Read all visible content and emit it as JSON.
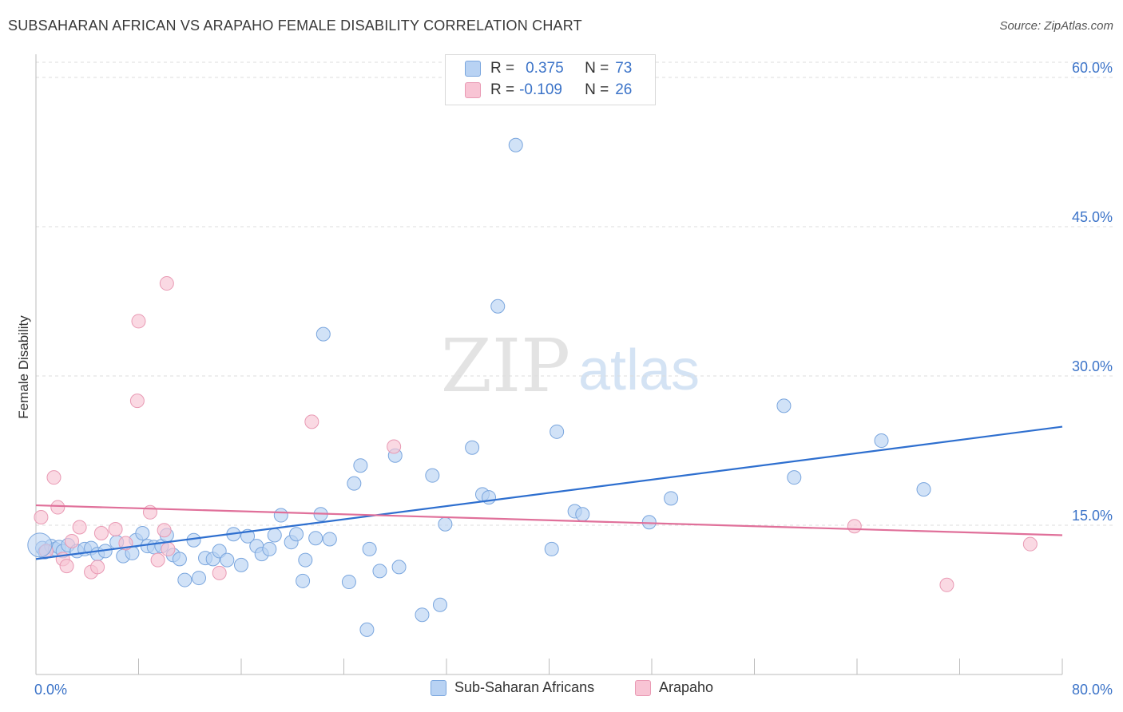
{
  "title": "SUBSAHARAN AFRICAN VS ARAPAHO FEMALE DISABILITY CORRELATION CHART",
  "source": "Source: ZipAtlas.com",
  "watermark": {
    "part1": "ZIP",
    "part2": "atlas"
  },
  "legend": {
    "rows": [
      {
        "r_label": "R =",
        "r_value": "0.375",
        "n_label": "N =",
        "n_value": "73"
      },
      {
        "r_label": "R =",
        "r_value": "-0.109",
        "n_label": "N =",
        "n_value": "26"
      }
    ]
  },
  "bottom_legend": {
    "items": [
      {
        "label": "Sub-Saharan Africans"
      },
      {
        "label": "Arapaho"
      }
    ]
  },
  "colors": {
    "blue_fill": "#b8d2f3",
    "blue_stroke": "#7aa6de",
    "blue_line": "#2e6fcf",
    "pink_fill": "#f8c4d4",
    "pink_stroke": "#e99ab4",
    "pink_line": "#e0709a",
    "tick_label": "#3b73c8"
  },
  "chart_data": {
    "type": "scatter",
    "title": "SUBSAHARAN AFRICAN VS ARAPAHO FEMALE DISABILITY CORRELATION CHART",
    "xlabel": "",
    "ylabel": "Female Disability",
    "xlim": [
      0,
      80
    ],
    "ylim": [
      0,
      60
    ],
    "x_tick_labels": [
      "0.0%",
      "80.0%"
    ],
    "y_ticks": [
      15,
      30,
      45,
      60
    ],
    "y_tick_labels": [
      "15.0%",
      "30.0%",
      "45.0%",
      "60.0%"
    ],
    "grid": true,
    "series": [
      {
        "name": "Sub-Saharan Africans",
        "r": 0.375,
        "n": 73,
        "trend": [
          [
            0,
            11.6
          ],
          [
            80,
            24.9
          ]
        ],
        "points": [
          [
            0.5,
            12.7
          ],
          [
            0.7,
            12.3
          ],
          [
            1.2,
            12.9
          ],
          [
            1.5,
            12.6
          ],
          [
            1.8,
            12.8
          ],
          [
            2.1,
            12.4
          ],
          [
            2.5,
            13.0
          ],
          [
            3.2,
            12.4
          ],
          [
            3.8,
            12.6
          ],
          [
            4.3,
            12.7
          ],
          [
            4.8,
            12.1
          ],
          [
            5.4,
            12.4
          ],
          [
            6.3,
            13.3
          ],
          [
            6.8,
            11.9
          ],
          [
            7.5,
            12.2
          ],
          [
            7.8,
            13.5
          ],
          [
            8.3,
            14.2
          ],
          [
            8.7,
            12.9
          ],
          [
            9.2,
            12.8
          ],
          [
            9.8,
            12.9
          ],
          [
            10.2,
            14.0
          ],
          [
            10.7,
            12.0
          ],
          [
            11.2,
            11.6
          ],
          [
            11.6,
            9.5
          ],
          [
            12.3,
            13.5
          ],
          [
            12.7,
            9.7
          ],
          [
            13.2,
            11.7
          ],
          [
            13.8,
            11.6
          ],
          [
            14.3,
            12.4
          ],
          [
            14.9,
            11.5
          ],
          [
            15.4,
            14.1
          ],
          [
            16.0,
            11.0
          ],
          [
            16.5,
            13.9
          ],
          [
            17.2,
            12.9
          ],
          [
            17.6,
            12.1
          ],
          [
            18.2,
            12.6
          ],
          [
            18.6,
            14.0
          ],
          [
            19.1,
            16.0
          ],
          [
            19.9,
            13.3
          ],
          [
            20.3,
            14.1
          ],
          [
            20.8,
            9.4
          ],
          [
            21.0,
            11.5
          ],
          [
            21.8,
            13.7
          ],
          [
            22.2,
            16.1
          ],
          [
            22.4,
            34.2
          ],
          [
            22.9,
            13.6
          ],
          [
            24.4,
            9.3
          ],
          [
            24.8,
            19.2
          ],
          [
            25.3,
            21.0
          ],
          [
            25.8,
            4.5
          ],
          [
            26.0,
            12.6
          ],
          [
            26.8,
            10.4
          ],
          [
            28.0,
            22.0
          ],
          [
            28.3,
            10.8
          ],
          [
            30.1,
            6.0
          ],
          [
            30.9,
            20.0
          ],
          [
            31.5,
            7.0
          ],
          [
            31.9,
            15.1
          ],
          [
            34.0,
            22.8
          ],
          [
            34.8,
            18.1
          ],
          [
            35.3,
            17.8
          ],
          [
            36.0,
            37.0
          ],
          [
            37.4,
            53.2
          ],
          [
            40.2,
            12.6
          ],
          [
            40.6,
            24.4
          ],
          [
            42.0,
            16.4
          ],
          [
            42.6,
            16.1
          ],
          [
            47.8,
            15.3
          ],
          [
            49.5,
            17.7
          ],
          [
            58.3,
            27.0
          ],
          [
            59.1,
            19.8
          ],
          [
            65.9,
            23.5
          ],
          [
            69.2,
            18.6
          ]
        ]
      },
      {
        "name": "Arapaho",
        "r": -0.109,
        "n": 26,
        "trend": [
          [
            0,
            17.0
          ],
          [
            80,
            14.0
          ]
        ],
        "points": [
          [
            0.4,
            15.8
          ],
          [
            0.8,
            12.4
          ],
          [
            1.4,
            19.8
          ],
          [
            1.7,
            16.8
          ],
          [
            2.1,
            11.6
          ],
          [
            2.4,
            10.9
          ],
          [
            2.8,
            13.4
          ],
          [
            3.4,
            14.8
          ],
          [
            4.3,
            10.3
          ],
          [
            4.8,
            10.8
          ],
          [
            5.1,
            14.2
          ],
          [
            6.2,
            14.6
          ],
          [
            7.0,
            13.2
          ],
          [
            7.9,
            27.5
          ],
          [
            8.0,
            35.5
          ],
          [
            8.9,
            16.3
          ],
          [
            9.5,
            11.5
          ],
          [
            10.0,
            14.5
          ],
          [
            10.3,
            12.6
          ],
          [
            10.2,
            39.3
          ],
          [
            14.3,
            10.2
          ],
          [
            21.5,
            25.4
          ],
          [
            27.9,
            22.9
          ],
          [
            63.8,
            14.9
          ],
          [
            71.0,
            9.0
          ],
          [
            77.5,
            13.1
          ]
        ]
      }
    ]
  }
}
